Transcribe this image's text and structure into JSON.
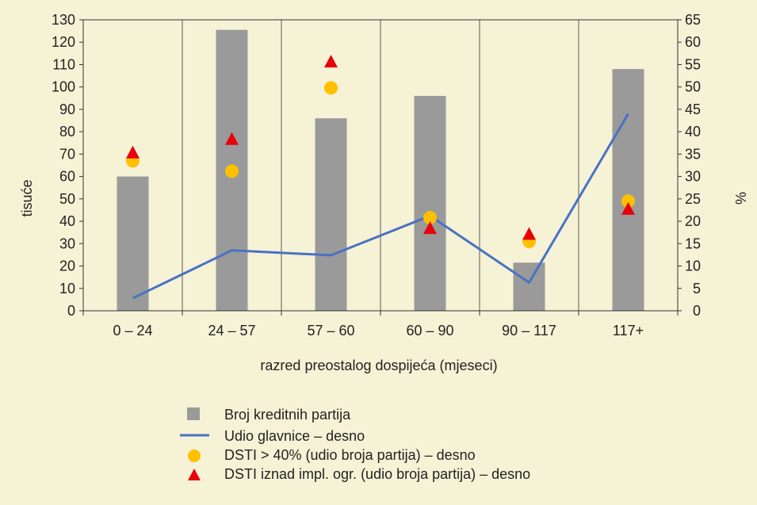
{
  "chart_data": {
    "type": "bar",
    "categories": [
      "0 – 24",
      "24 – 57",
      "57 – 60",
      "60 – 90",
      "90 – 117",
      "117+"
    ],
    "xlabel": "razred preostalog dospijeća (mjeseci)",
    "ylabel": "tisuće",
    "y2label": "%",
    "ylim": [
      0,
      130
    ],
    "y2lim": [
      0,
      65
    ],
    "y_ticks": [
      "0",
      "10",
      "20",
      "30",
      "40",
      "50",
      "60",
      "70",
      "80",
      "90",
      "100",
      "110",
      "120",
      "130"
    ],
    "y2_ticks": [
      "0",
      "5",
      "10",
      "15",
      "20",
      "25",
      "30",
      "35",
      "40",
      "45",
      "50",
      "55",
      "60",
      "65"
    ],
    "grid": "vertical",
    "legend_position": "bottom",
    "series": [
      {
        "name": "Broj kreditnih partija",
        "kind": "bar",
        "axis": "left",
        "color": "#9a9a9a",
        "values": [
          60,
          125.5,
          86,
          96,
          21.5,
          108
        ]
      },
      {
        "name": "Udio glavnice – desno",
        "kind": "line",
        "axis": "right",
        "color": "#4a72c4",
        "values": [
          2.8,
          13.5,
          12.4,
          21.2,
          6.3,
          44
        ]
      },
      {
        "name": "DSTI > 40% (udio broja partija) – desno",
        "kind": "marker-circle",
        "axis": "right",
        "color": "#ffc000",
        "values": [
          33.5,
          31.2,
          49.8,
          20.8,
          15.5,
          24.5
        ]
      },
      {
        "name": "DSTI iznad impl. ogr. (udio broja partija) – desno",
        "kind": "marker-triangle",
        "axis": "right",
        "color": "#e8000b",
        "values": [
          35.3,
          38.3,
          55.6,
          18.4,
          17.1,
          22.7
        ]
      }
    ]
  }
}
